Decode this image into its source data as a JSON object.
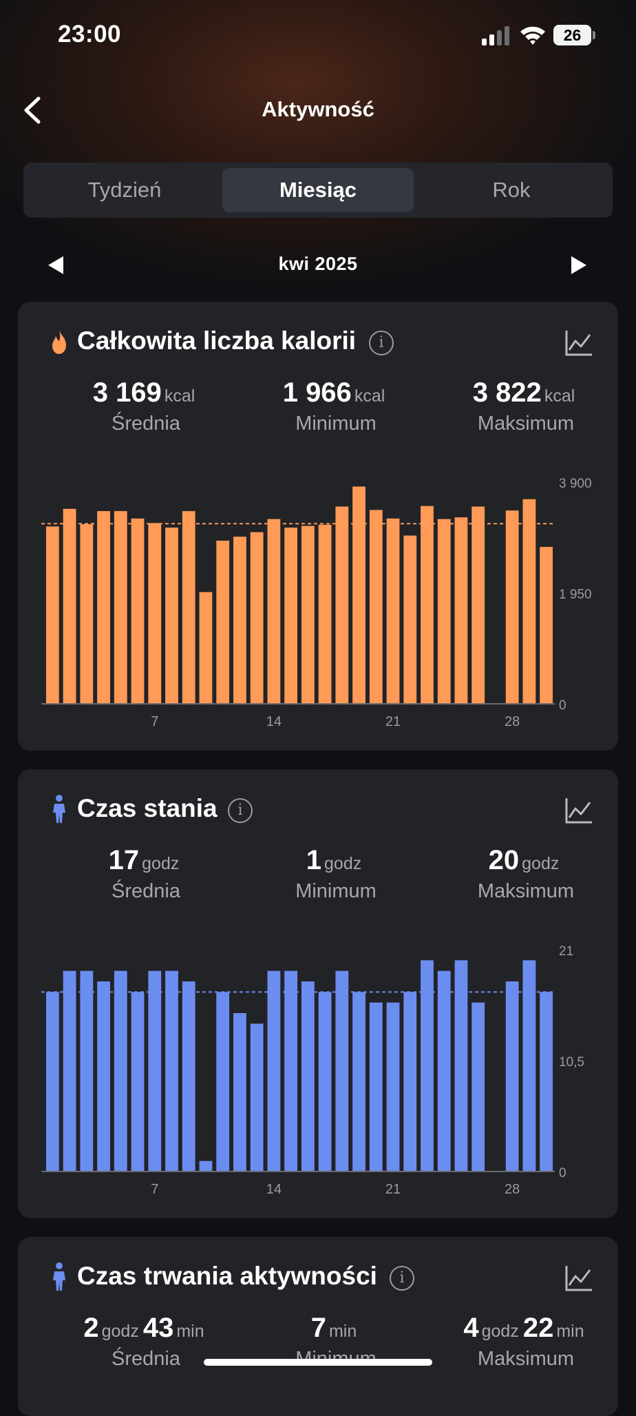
{
  "status_bar": {
    "time": "23:00",
    "battery": "26"
  },
  "nav": {
    "title": "Aktywność"
  },
  "tabs": [
    {
      "label": "Tydzień",
      "active": false
    },
    {
      "label": "Miesiąc",
      "active": true
    },
    {
      "label": "Rok",
      "active": false
    }
  ],
  "period": {
    "label": "kwi 2025"
  },
  "colors": {
    "calories": "#ff9a57",
    "standing": "#6c8df0",
    "background": "#0f1013",
    "card": "#222327"
  },
  "cards": {
    "calories": {
      "title": "Całkowita liczba kalorii",
      "icon": "flame-icon",
      "stats": [
        {
          "value": "3 169",
          "unit": "kcal",
          "label": "Średnia"
        },
        {
          "value": "1 966",
          "unit": "kcal",
          "label": "Minimum"
        },
        {
          "value": "3 822",
          "unit": "kcal",
          "label": "Maksimum"
        }
      ]
    },
    "standing": {
      "title": "Czas stania",
      "icon": "person-icon",
      "stats": [
        {
          "value": "17",
          "unit": "godz",
          "label": "Średnia"
        },
        {
          "value": "1",
          "unit": "godz",
          "label": "Minimum"
        },
        {
          "value": "20",
          "unit": "godz",
          "label": "Maksimum"
        }
      ]
    },
    "activity": {
      "title": "Czas trwania aktywności",
      "icon": "person-icon",
      "stats": [
        {
          "value": "2",
          "unit": "godz",
          "value2": "43",
          "unit2": "min",
          "label": "Średnia"
        },
        {
          "value": "7",
          "unit": "min",
          "label": "Minimum"
        },
        {
          "value": "4",
          "unit": "godz",
          "value2": "22",
          "unit2": "min",
          "label": "Maksimum"
        }
      ]
    }
  },
  "chart_data": [
    {
      "type": "bar",
      "series": [
        {
          "values": [
            3120,
            3430,
            3160,
            3390,
            3390,
            3260,
            3180,
            3100,
            3390,
            1966,
            2870,
            2940,
            3020,
            3250,
            3100,
            3130,
            3150,
            3470,
            3822,
            3410,
            3260,
            2960,
            3480,
            3250,
            3280,
            3470,
            null,
            3400,
            3600,
            2760
          ]
        }
      ],
      "x": [
        1,
        2,
        3,
        4,
        5,
        6,
        7,
        8,
        9,
        10,
        11,
        12,
        13,
        14,
        15,
        16,
        17,
        18,
        19,
        20,
        21,
        22,
        23,
        24,
        25,
        26,
        27,
        28,
        29,
        30
      ],
      "x_tick_labels": [
        "7",
        "14",
        "21",
        "28"
      ],
      "y_tick_labels": [
        "3 900",
        "1 950",
        "0"
      ],
      "ylim": [
        0,
        3900
      ],
      "average": 3169
    },
    {
      "type": "bar",
      "series": [
        {
          "values": [
            17,
            19,
            19,
            18,
            19,
            17,
            19,
            19,
            18,
            1,
            17,
            15,
            14,
            19,
            19,
            18,
            17,
            19,
            17,
            16,
            16,
            17,
            20,
            19,
            20,
            16,
            null,
            18,
            20,
            17
          ]
        }
      ],
      "x": [
        1,
        2,
        3,
        4,
        5,
        6,
        7,
        8,
        9,
        10,
        11,
        12,
        13,
        14,
        15,
        16,
        17,
        18,
        19,
        20,
        21,
        22,
        23,
        24,
        25,
        26,
        27,
        28,
        29,
        30
      ],
      "x_tick_labels": [
        "7",
        "14",
        "21",
        "28"
      ],
      "y_tick_labels": [
        "21",
        "10,5",
        "0"
      ],
      "ylim": [
        0,
        21
      ],
      "average": 17
    }
  ]
}
